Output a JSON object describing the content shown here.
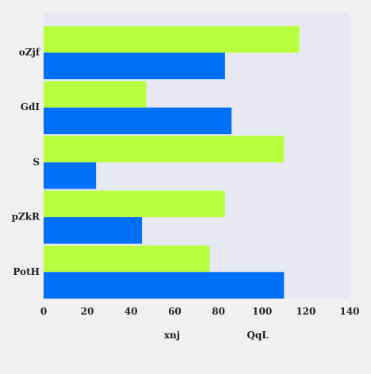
{
  "chart_data": {
    "type": "bar",
    "orientation": "horizontal",
    "categories": [
      "oZjf",
      "GdI",
      "S",
      "pZkR",
      "PotH"
    ],
    "series": [
      {
        "name": "QqL",
        "color": "#b8ff40",
        "values": [
          117,
          47,
          110,
          83,
          76
        ]
      },
      {
        "name": "xnj",
        "color": "#0071f7",
        "values": [
          83,
          86,
          24,
          45,
          110
        ]
      }
    ],
    "xlim": [
      0,
      140
    ],
    "xticks": [
      0,
      20,
      40,
      60,
      80,
      100,
      120,
      140
    ],
    "grid": false,
    "legend_position": "bottom",
    "plot_background": "#e8e8f2",
    "page_background": "#f0f0f0"
  }
}
